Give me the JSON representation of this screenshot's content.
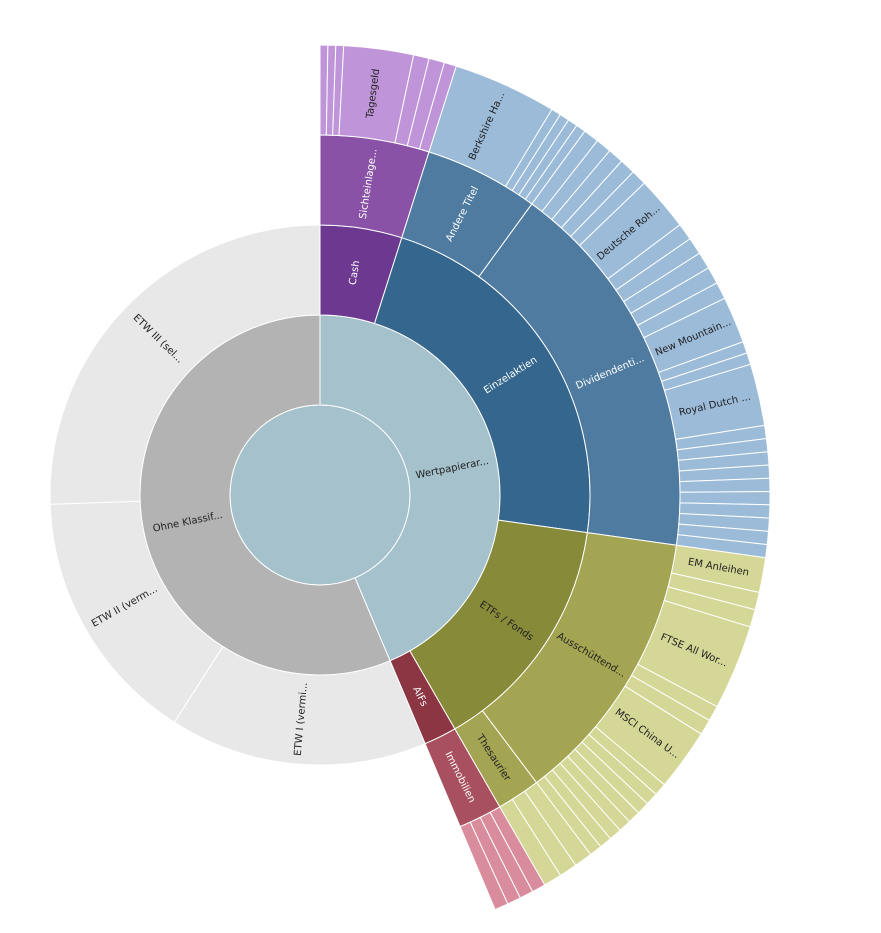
{
  "chart_data": {
    "type": "sunburst",
    "children": [
      {
        "name": "Wertpapierar...",
        "color": "#a4c1cc",
        "children": [
          {
            "name": "Cash",
            "color": "#6d388f",
            "children": [
              {
                "name": "Sichteinlage...",
                "color": "#8a52a6",
                "children": [
                  {
                    "name": null,
                    "color": "#bf94d9",
                    "value": 0.28
                  },
                  {
                    "name": null,
                    "color": "#bf94d9",
                    "value": 0.28
                  },
                  {
                    "name": null,
                    "color": "#bf94d9",
                    "value": 0.28
                  },
                  {
                    "name": "Tagesgeld",
                    "color": "#bf94d9",
                    "value": 2.5
                  },
                  {
                    "name": null,
                    "color": "#bf94d9",
                    "value": 0.56
                  },
                  {
                    "name": null,
                    "color": "#bf94d9",
                    "value": 0.56
                  },
                  {
                    "name": null,
                    "color": "#bf94d9",
                    "value": 0.44
                  }
                ]
              }
            ]
          },
          {
            "name": "Einzelaktien",
            "color": "#35678e",
            "children": [
              {
                "name": "Andere Titel",
                "color": "#4f7ba1",
                "children": [
                  {
                    "name": "Berkshire Ha...",
                    "color": "#9bbbd9",
                    "value": 3.72
                  },
                  {
                    "name": null,
                    "color": "#9bbbd9",
                    "value": 0.35
                  },
                  {
                    "name": null,
                    "color": "#9bbbd9",
                    "value": 0.35
                  },
                  {
                    "name": null,
                    "color": "#9bbbd9",
                    "value": 0.35
                  },
                  {
                    "name": null,
                    "color": "#9bbbd9",
                    "value": 0.35
                  }
                ]
              },
              {
                "name": "Dividendenti...",
                "color": "#4f7ba1",
                "children": [
                  {
                    "name": null,
                    "color": "#9bbbd9",
                    "value": 0.56
                  },
                  {
                    "name": null,
                    "color": "#9bbbd9",
                    "value": 0.56
                  },
                  {
                    "name": null,
                    "color": "#9bbbd9",
                    "value": 0.56
                  },
                  {
                    "name": null,
                    "color": "#9bbbd9",
                    "value": 0.56
                  },
                  {
                    "name": null,
                    "color": "#9bbbd9",
                    "value": 0.56
                  },
                  {
                    "name": "Deutsche Roh...",
                    "color": "#9bbbd9",
                    "value": 1.94
                  },
                  {
                    "name": null,
                    "color": "#9bbbd9",
                    "value": 0.61
                  },
                  {
                    "name": null,
                    "color": "#9bbbd9",
                    "value": 0.61
                  },
                  {
                    "name": null,
                    "color": "#9bbbd9",
                    "value": 0.61
                  },
                  {
                    "name": null,
                    "color": "#9bbbd9",
                    "value": 0.61
                  },
                  {
                    "name": null,
                    "color": "#9bbbd9",
                    "value": 0.61
                  },
                  {
                    "name": "New Mountain...",
                    "color": "#9bbbd9",
                    "value": 1.67
                  },
                  {
                    "name": null,
                    "color": "#9bbbd9",
                    "value": 0.42
                  },
                  {
                    "name": null,
                    "color": "#9bbbd9",
                    "value": 0.42
                  },
                  {
                    "name": "Royal Dutch ...",
                    "color": "#9bbbd9",
                    "value": 2.22
                  },
                  {
                    "name": null,
                    "color": "#9bbbd9",
                    "value": 0.47
                  },
                  {
                    "name": null,
                    "color": "#9bbbd9",
                    "value": 0.47
                  },
                  {
                    "name": null,
                    "color": "#9bbbd9",
                    "value": 0.47
                  },
                  {
                    "name": null,
                    "color": "#9bbbd9",
                    "value": 0.47
                  },
                  {
                    "name": null,
                    "color": "#9bbbd9",
                    "value": 0.47
                  },
                  {
                    "name": null,
                    "color": "#9bbbd9",
                    "value": 0.47
                  },
                  {
                    "name": null,
                    "color": "#9bbbd9",
                    "value": 0.47
                  },
                  {
                    "name": null,
                    "color": "#9bbbd9",
                    "value": 0.47
                  },
                  {
                    "name": null,
                    "color": "#9bbbd9",
                    "value": 0.47
                  },
                  {
                    "name": null,
                    "color": "#9bbbd9",
                    "value": 0.47
                  }
                ]
              }
            ]
          },
          {
            "name": "ETFs / Fonds",
            "color": "#878a38",
            "children": [
              {
                "name": "Ausschüttend...",
                "color": "#a3a552",
                "children": [
                  {
                    "name": "EM Anleihen",
                    "color": "#d5d796",
                    "value": 1.25
                  },
                  {
                    "name": null,
                    "color": "#d5d796",
                    "value": 0.63
                  },
                  {
                    "name": null,
                    "color": "#d5d796",
                    "value": 0.63
                  },
                  {
                    "name": "FTSE All Wor...",
                    "color": "#d5d796",
                    "value": 3.06
                  },
                  {
                    "name": null,
                    "color": "#d5d796",
                    "value": 0.56
                  },
                  {
                    "name": null,
                    "color": "#d5d796",
                    "value": 0.56
                  },
                  {
                    "name": "MSCI China U...",
                    "color": "#d5d796",
                    "value": 2.22
                  },
                  {
                    "name": null,
                    "color": "#d5d796",
                    "value": 0.45
                  },
                  {
                    "name": null,
                    "color": "#d5d796",
                    "value": 0.45
                  },
                  {
                    "name": null,
                    "color": "#d5d796",
                    "value": 0.45
                  },
                  {
                    "name": null,
                    "color": "#d5d796",
                    "value": 0.45
                  },
                  {
                    "name": null,
                    "color": "#d5d796",
                    "value": 0.45
                  },
                  {
                    "name": null,
                    "color": "#d5d796",
                    "value": 0.45
                  },
                  {
                    "name": null,
                    "color": "#d5d796",
                    "value": 0.45
                  },
                  {
                    "name": null,
                    "color": "#d5d796",
                    "value": 0.45
                  }
                ]
              },
              {
                "name": "Thesaurier",
                "color": "#a3a552",
                "children": [
                  {
                    "name": null,
                    "color": "#d5d796",
                    "value": 0.65
                  },
                  {
                    "name": null,
                    "color": "#d5d796",
                    "value": 0.65
                  },
                  {
                    "name": null,
                    "color": "#d5d796",
                    "value": 0.65
                  }
                ]
              }
            ]
          },
          {
            "name": "AIFs",
            "color": "#8c3644",
            "children": [
              {
                "name": "Immobilien",
                "color": "#a8505f",
                "children": [
                  {
                    "name": null,
                    "color": "#d98c9c",
                    "value": 0.49
                  },
                  {
                    "name": null,
                    "color": "#d98c9c",
                    "value": 0.49
                  },
                  {
                    "name": null,
                    "color": "#d98c9c",
                    "value": 0.49
                  },
                  {
                    "name": null,
                    "color": "#d98c9c",
                    "value": 0.49
                  }
                ]
              }
            ]
          }
        ]
      },
      {
        "name": "Ohne Klassif...",
        "color": "#b3b3b3",
        "children": [
          {
            "name": "ETW I (vermi...",
            "color": "#e8e8e8",
            "value": 15.44
          },
          {
            "name": "ETW II (verm...",
            "color": "#e8e8e8",
            "value": 15.39
          },
          {
            "name": "ETW III (sel...",
            "color": "#e8e8e8",
            "value": 25.56
          }
        ]
      }
    ]
  }
}
